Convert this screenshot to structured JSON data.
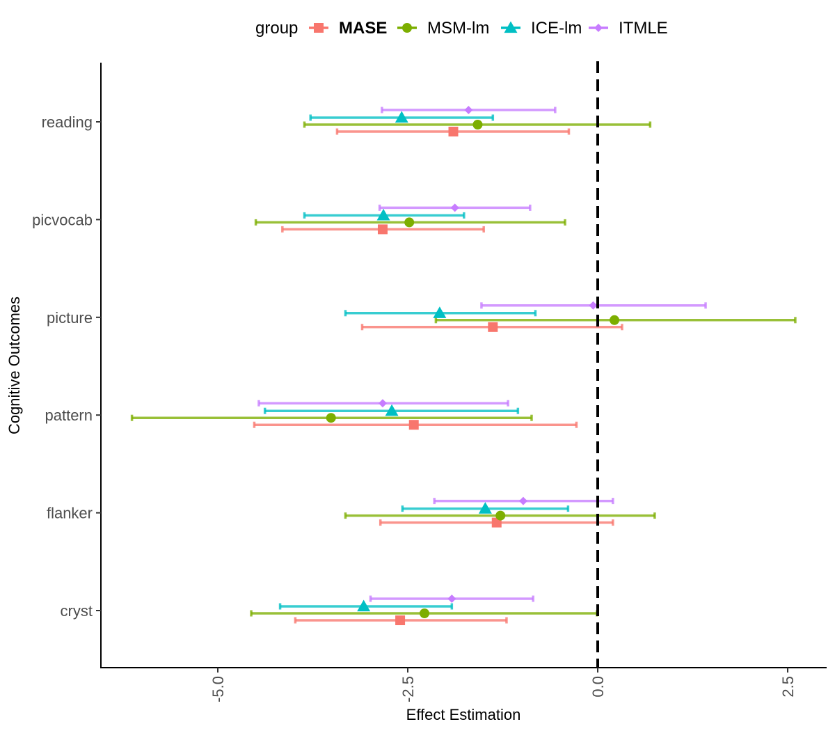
{
  "chart_data": {
    "type": "errorbar-forest",
    "title": "",
    "xlabel": "Effect Estimation",
    "ylabel": "Cognitive Outcomes",
    "xlim": [
      -6.6,
      3.0
    ],
    "xticks": [
      -5.0,
      -2.5,
      0.0,
      2.5
    ],
    "xtick_labels": [
      "-5.0",
      "-2.5",
      "0.0",
      "2.5"
    ],
    "reference_line": 0.0,
    "grid": false,
    "legend": {
      "title": "group",
      "position": "top"
    },
    "categories": [
      "reading",
      "picvocab",
      "picture",
      "pattern",
      "flanker",
      "cryst"
    ],
    "series": [
      {
        "name": "MASE",
        "bold": true,
        "color": "#F8766D",
        "marker": "square",
        "estimates": [
          -1.9,
          -2.83,
          -1.38,
          -2.42,
          -1.33,
          -2.6
        ],
        "lower": [
          -3.43,
          -4.15,
          -3.1,
          -4.52,
          -2.86,
          -3.98
        ],
        "upper": [
          -0.38,
          -1.5,
          0.32,
          -0.28,
          0.2,
          -1.2
        ]
      },
      {
        "name": "MSM-lm",
        "bold": false,
        "color": "#7CAE00",
        "marker": "circle",
        "estimates": [
          -1.58,
          -2.48,
          0.22,
          -3.51,
          -1.28,
          -2.28
        ],
        "lower": [
          -3.86,
          -4.5,
          -2.13,
          -6.13,
          -3.32,
          -4.56
        ],
        "upper": [
          0.69,
          -0.43,
          2.6,
          -0.87,
          0.75,
          -0.01
        ]
      },
      {
        "name": "ICE-lm",
        "bold": false,
        "color": "#00BFC4",
        "marker": "triangle",
        "estimates": [
          -2.58,
          -2.82,
          -2.08,
          -2.71,
          -1.48,
          -3.08
        ],
        "lower": [
          -3.78,
          -3.86,
          -3.32,
          -4.38,
          -2.57,
          -4.18
        ],
        "upper": [
          -1.38,
          -1.76,
          -0.82,
          -1.05,
          -0.39,
          -1.92
        ]
      },
      {
        "name": "ITMLE",
        "bold": false,
        "color": "#C77CFF",
        "marker": "diamond",
        "estimates": [
          -1.7,
          -1.88,
          -0.06,
          -2.83,
          -0.98,
          -1.92
        ],
        "lower": [
          -2.84,
          -2.87,
          -1.53,
          -4.46,
          -2.15,
          -2.99
        ],
        "upper": [
          -0.56,
          -0.89,
          1.42,
          -1.18,
          0.2,
          -0.85
        ]
      }
    ]
  }
}
